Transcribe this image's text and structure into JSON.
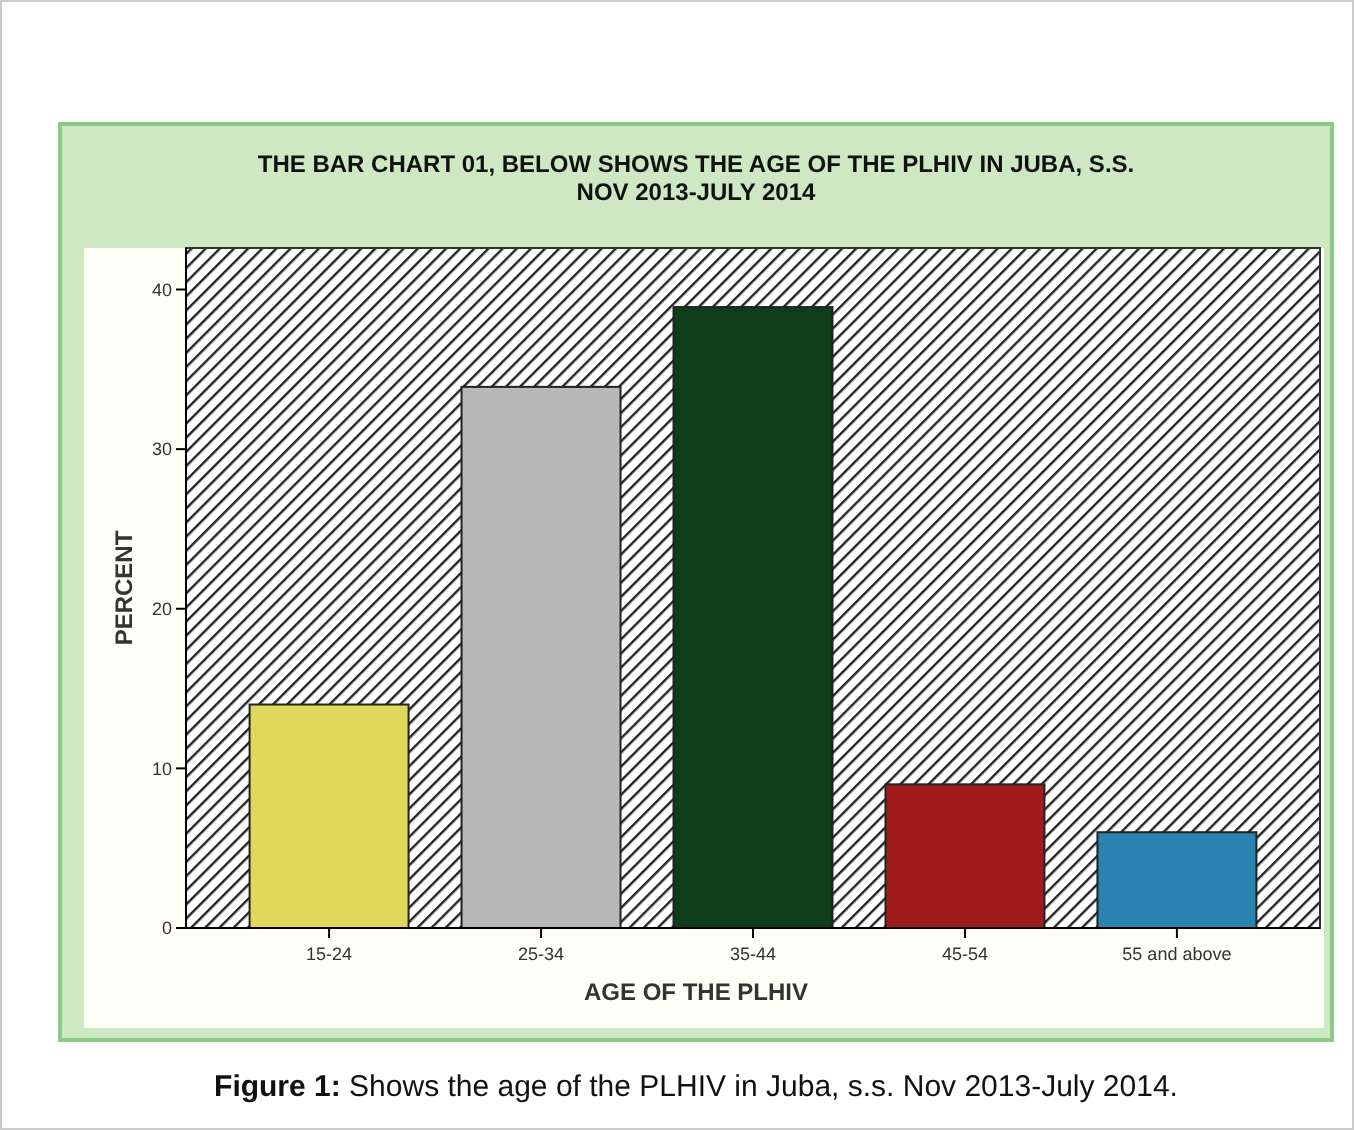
{
  "chart_data": {
    "type": "bar",
    "title": "THE BAR CHART 01, BELOW SHOWS THE AGE OF THE PLHIV IN JUBA, S.S.\nNOV 2013-JULY 2014",
    "xlabel": "AGE OF THE PLHIV",
    "ylabel": "PERCENT",
    "categories": [
      "15-24",
      "25-34",
      "35-44",
      "45-54",
      "55 and above"
    ],
    "values": [
      14.0,
      33.9,
      38.9,
      9.0,
      6.0
    ],
    "colors": [
      "#e0d85a",
      "#b8b8b8",
      "#0f3d1a",
      "#a01c1c",
      "#2a82b0"
    ],
    "ylim": [
      0,
      42.6
    ],
    "yticks": [
      0,
      10,
      20,
      30,
      40
    ],
    "grid": false,
    "annotations": [
      "Figure 1: Shows the age of the PLHIV in Juba, s.s. Nov 2013-July 2014."
    ]
  }
}
